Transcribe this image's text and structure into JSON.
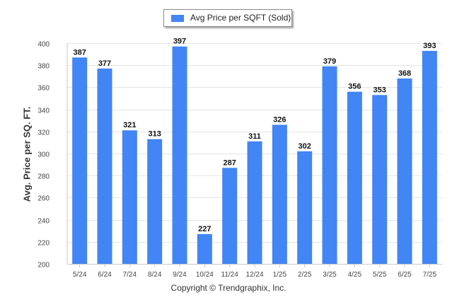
{
  "chart_data": {
    "type": "bar",
    "categories": [
      "5/24",
      "6/24",
      "7/24",
      "8/24",
      "9/24",
      "10/24",
      "11/24",
      "12/24",
      "1/25",
      "2/25",
      "3/25",
      "4/25",
      "5/25",
      "6/25",
      "7/25"
    ],
    "series": [
      {
        "name": "Avg Price per SQFT (Sold)",
        "values": [
          387,
          377,
          321,
          313,
          397,
          227,
          287,
          311,
          326,
          302,
          379,
          356,
          353,
          368,
          393
        ]
      }
    ],
    "xlabel": "",
    "ylabel": "Avg. Price per SQ. FT.",
    "ylim": [
      200,
      400
    ],
    "yticks": [
      200,
      220,
      240,
      260,
      280,
      300,
      320,
      340,
      360,
      380,
      400
    ],
    "grid": true,
    "legend_position": "top-center",
    "data_labels": true,
    "bar_color": "#4285f4"
  },
  "footer": {
    "copyright": "Copyright © Trendgraphix, Inc."
  }
}
